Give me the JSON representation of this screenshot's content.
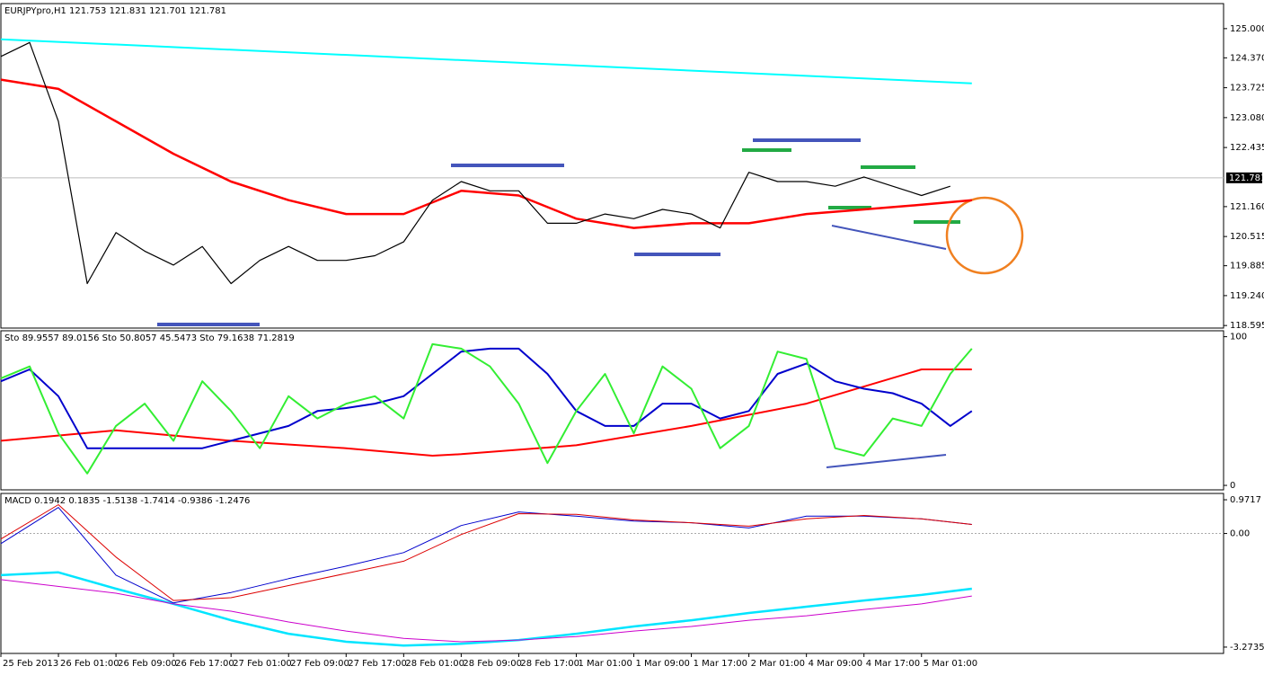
{
  "chart_data": [
    {
      "type": "line",
      "header": "EURJPYpro,H1  121.753 121.831 121.701 121.781",
      "xlim": [
        0,
        170
      ],
      "ylim": [
        118.54,
        125.54
      ],
      "last_price": 121.781,
      "yticks": [
        {
          "value": 125.0,
          "label": "125.000"
        },
        {
          "value": 124.37,
          "label": "124.370"
        },
        123.725,
        {
          "value": 123.08,
          "label": "123.080"
        },
        122.435,
        {
          "value": 121.16,
          "label": "121.160"
        },
        120.515,
        119.885,
        {
          "value": 119.24,
          "label": "119.240"
        },
        118.595
      ],
      "series": [
        {
          "color": "#00ffff",
          "width": 2,
          "x": [
            0,
            135
          ],
          "values": [
            124.77,
            123.82
          ]
        },
        {
          "color": "#ff0000",
          "width": 2.5,
          "x": [
            0,
            8,
            16,
            24,
            32,
            40,
            48,
            56,
            64,
            72,
            80,
            88,
            96,
            104,
            112,
            120,
            128,
            135
          ],
          "values": [
            123.9,
            123.7,
            123.0,
            122.3,
            121.7,
            121.3,
            121.0,
            121.0,
            121.5,
            121.4,
            120.9,
            120.7,
            120.8,
            120.8,
            121.0,
            121.1,
            121.2,
            121.3
          ]
        },
        {
          "color": "#000000",
          "width": 1.2,
          "x": [
            0,
            4,
            8,
            12,
            16,
            20,
            24,
            28,
            32,
            36,
            40,
            44,
            48,
            52,
            56,
            60,
            64,
            68,
            72,
            76,
            80,
            84,
            88,
            92,
            96,
            100,
            104,
            108,
            112,
            116,
            120,
            124,
            128,
            132
          ],
          "values": [
            124.4,
            124.7,
            123.0,
            119.5,
            120.6,
            120.2,
            119.9,
            120.3,
            119.5,
            120.0,
            120.3,
            120.0,
            120.0,
            120.1,
            120.4,
            121.3,
            121.7,
            121.5,
            121.5,
            120.8,
            120.8,
            121.0,
            120.9,
            121.1,
            121.0,
            120.7,
            121.9,
            121.7,
            121.7,
            121.6,
            121.8,
            121.6,
            121.4,
            121.6
          ]
        }
      ]
    },
    {
      "type": "line",
      "header": "Sto 89.9557 89.0156  Sto 50.8057 45.5473  Sto 79.1638 71.2819",
      "xlim": [
        0,
        170
      ],
      "ylim": [
        -3,
        104
      ],
      "yticks": [
        0,
        100
      ],
      "series": [
        {
          "color": "#ff0000",
          "width": 2,
          "x": [
            0,
            16,
            32,
            48,
            60,
            64,
            80,
            96,
            112,
            128,
            132,
            135
          ],
          "values": [
            30,
            37,
            30,
            25,
            20,
            21,
            27,
            40,
            55,
            78,
            78,
            78
          ]
        },
        {
          "color": "#0000cc",
          "width": 2,
          "x": [
            0,
            4,
            8,
            12,
            16,
            20,
            24,
            28,
            32,
            36,
            40,
            44,
            48,
            52,
            56,
            60,
            64,
            68,
            72,
            76,
            80,
            84,
            88,
            92,
            96,
            100,
            104,
            108,
            112,
            116,
            120,
            124,
            128,
            132,
            135
          ],
          "values": [
            70,
            78,
            60,
            25,
            25,
            25,
            25,
            25,
            30,
            35,
            40,
            50,
            52,
            55,
            60,
            75,
            90,
            92,
            92,
            75,
            50,
            40,
            40,
            55,
            55,
            45,
            50,
            75,
            82,
            70,
            65,
            62,
            55,
            40,
            50
          ]
        },
        {
          "color": "#33ee33",
          "width": 2,
          "x": [
            0,
            4,
            8,
            12,
            16,
            20,
            24,
            28,
            32,
            36,
            40,
            44,
            48,
            52,
            56,
            60,
            64,
            68,
            72,
            76,
            80,
            84,
            88,
            92,
            96,
            100,
            104,
            108,
            112,
            116,
            120,
            124,
            128,
            132,
            135
          ],
          "values": [
            72,
            80,
            35,
            8,
            40,
            55,
            30,
            70,
            50,
            25,
            60,
            45,
            55,
            60,
            45,
            95,
            92,
            80,
            55,
            15,
            50,
            75,
            35,
            80,
            65,
            25,
            40,
            90,
            85,
            25,
            20,
            45,
            40,
            75,
            92
          ]
        }
      ]
    },
    {
      "type": "line",
      "header": "MACD 0.1942 0.1835 -1.5138 -1.7414 -0.9386 -1.2476",
      "xlim": [
        0,
        170
      ],
      "ylim": [
        -3.456,
        1.154
      ],
      "yticks": [
        0.9717,
        {
          "value": 0,
          "label": "0.00"
        },
        -3.2735
      ],
      "xticks": [
        {
          "value": 0,
          "label": "25 Feb 2013"
        },
        {
          "value": 8,
          "label": "26 Feb 01:00"
        },
        {
          "value": 16,
          "label": "26 Feb 09:00"
        },
        {
          "value": 24,
          "label": "26 Feb 17:00"
        },
        {
          "value": 32,
          "label": "27 Feb 01:00"
        },
        {
          "value": 40,
          "label": "27 Feb 09:00"
        },
        {
          "value": 48,
          "label": "27 Feb 17:00"
        },
        {
          "value": 56,
          "label": "28 Feb 01:00"
        },
        {
          "value": 64,
          "label": "28 Feb 09:00"
        },
        {
          "value": 72,
          "label": "28 Feb 17:00"
        },
        {
          "value": 80,
          "label": "1 Mar 01:00"
        },
        {
          "value": 88,
          "label": "1 Mar 09:00"
        },
        {
          "value": 96,
          "label": "1 Mar 17:00"
        },
        {
          "value": 104,
          "label": "2 Mar 01:00"
        },
        {
          "value": 112,
          "label": "4 Mar 09:00"
        },
        {
          "value": 120,
          "label": "4 Mar 17:00"
        },
        {
          "value": 128,
          "label": "5 Mar 01:00"
        }
      ],
      "series": [
        {
          "color": "#00e5ff",
          "width": 2.5,
          "x": [
            0,
            8,
            16,
            24,
            32,
            40,
            48,
            56,
            64,
            72,
            80,
            88,
            96,
            104,
            112,
            120,
            128,
            135
          ],
          "values": [
            -1.2,
            -1.12,
            -1.59,
            -2.03,
            -2.5,
            -2.89,
            -3.12,
            -3.23,
            -3.18,
            -3.07,
            -2.89,
            -2.68,
            -2.5,
            -2.29,
            -2.11,
            -1.93,
            -1.77,
            -1.59
          ]
        },
        {
          "color": "#cc00cc",
          "width": 1,
          "x": [
            0,
            16,
            24,
            32,
            40,
            48,
            56,
            64,
            72,
            80,
            88,
            96,
            104,
            112,
            120,
            128,
            135
          ],
          "values": [
            -1.33,
            -1.72,
            -2.03,
            -2.24,
            -2.55,
            -2.81,
            -3.02,
            -3.12,
            -3.07,
            -2.97,
            -2.81,
            -2.68,
            -2.5,
            -2.37,
            -2.19,
            -2.03,
            -1.8
          ]
        },
        {
          "color": "#0000cc",
          "width": 1,
          "x": [
            0,
            8,
            16,
            24,
            32,
            40,
            48,
            56,
            64,
            72,
            80,
            88,
            96,
            104,
            112,
            120,
            128,
            135
          ],
          "values": [
            -0.29,
            0.75,
            -1.2,
            -2.0,
            -1.7,
            -1.3,
            -0.94,
            -0.55,
            0.23,
            0.62,
            0.5,
            0.36,
            0.31,
            0.16,
            0.5,
            0.5,
            0.42,
            0.26
          ]
        },
        {
          "color": "#dd0000",
          "width": 1,
          "x": [
            0,
            8,
            16,
            24,
            32,
            40,
            48,
            56,
            64,
            72,
            80,
            88,
            96,
            104,
            112,
            120,
            128,
            135
          ],
          "values": [
            -0.16,
            0.83,
            -0.68,
            -1.93,
            -1.85,
            -1.5,
            -1.15,
            -0.8,
            -0.03,
            0.57,
            0.55,
            0.39,
            0.31,
            0.21,
            0.42,
            0.52,
            0.42,
            0.26
          ]
        }
      ]
    }
  ]
}
